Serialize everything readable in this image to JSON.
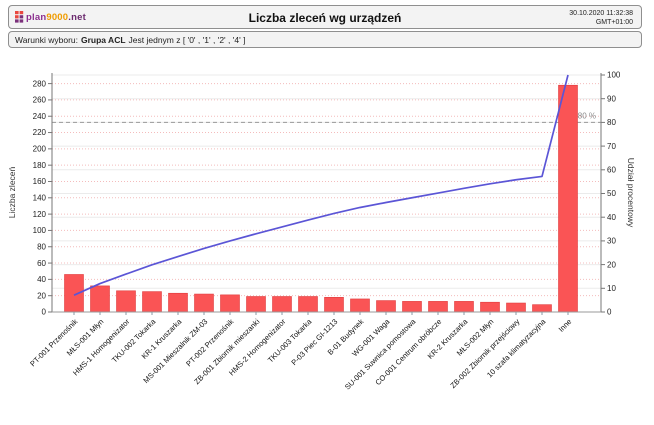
{
  "header": {
    "logo": {
      "part1": "plan",
      "part2": "9000",
      "part3": ".net"
    },
    "title": "Liczba zleceń wg urządzeń",
    "datetime": "30.10.2020 11:32:38",
    "timezone": "GMT+01:00"
  },
  "filter_bar": {
    "prefix": "Warunki wyboru:",
    "field": "Grupa ACL",
    "condition": "Jest jednym z [ '0' , '1' , '2' , '4' ]"
  },
  "chart_data": {
    "type": "bar",
    "subtype": "pareto-bar-with-cumulative-line",
    "title": "Liczba zleceń wg urządzeń",
    "categories": [
      "PT-001 Przenośnik",
      "MŁS-001 Młyn",
      "HMS-1 Homogenizator",
      "TKU-002 Tokarka",
      "KR-1 Kruszarka",
      "MS-001 Mieszalnik ZM-03",
      "PT-002 Przenośnik",
      "ZB-001 Zbiornik mieszanki",
      "HMS-2 Homogenizator",
      "TKU-003 Tokarka",
      "P-03 Piec GI-1213",
      "B-01 Budynek",
      "WG-001 Waga",
      "SU-001 Suwnica pomostowa",
      "CO-001 Centrum obróbcze",
      "KR-2 Kruszarka",
      "MŁS-002 Młyn",
      "ZB-002 Zbiornik przejściowy",
      "10 szafa klimatyzacyjna",
      "Inne"
    ],
    "series": [
      {
        "name": "Liczba zleceń",
        "type": "bar",
        "color": "#fa5455",
        "values": [
          46,
          32,
          26,
          25,
          23,
          22,
          21,
          19,
          19,
          19,
          18,
          16,
          14,
          13,
          13,
          13,
          12,
          11,
          9,
          278
        ]
      },
      {
        "name": "Udział procentowy",
        "type": "line",
        "color": "#5b55d6",
        "values": [
          7.1,
          12.0,
          16.0,
          19.9,
          23.4,
          26.8,
          30.0,
          33.0,
          35.9,
          38.8,
          41.6,
          44.1,
          46.2,
          48.2,
          50.2,
          52.2,
          54.1,
          55.8,
          57.2,
          100.0
        ]
      }
    ],
    "ylabel_left": "Liczba zleceń",
    "ylabel_right": "Udział procentowy",
    "ylim_left": [
      0,
      280
    ],
    "ytick_step_left": 20,
    "ylim_right": [
      0,
      100
    ],
    "ytick_step_right": 10,
    "threshold": {
      "value": 80,
      "label": "80 %"
    },
    "grid": "horizontal",
    "legend": "none",
    "category_label_rotation": -45
  }
}
